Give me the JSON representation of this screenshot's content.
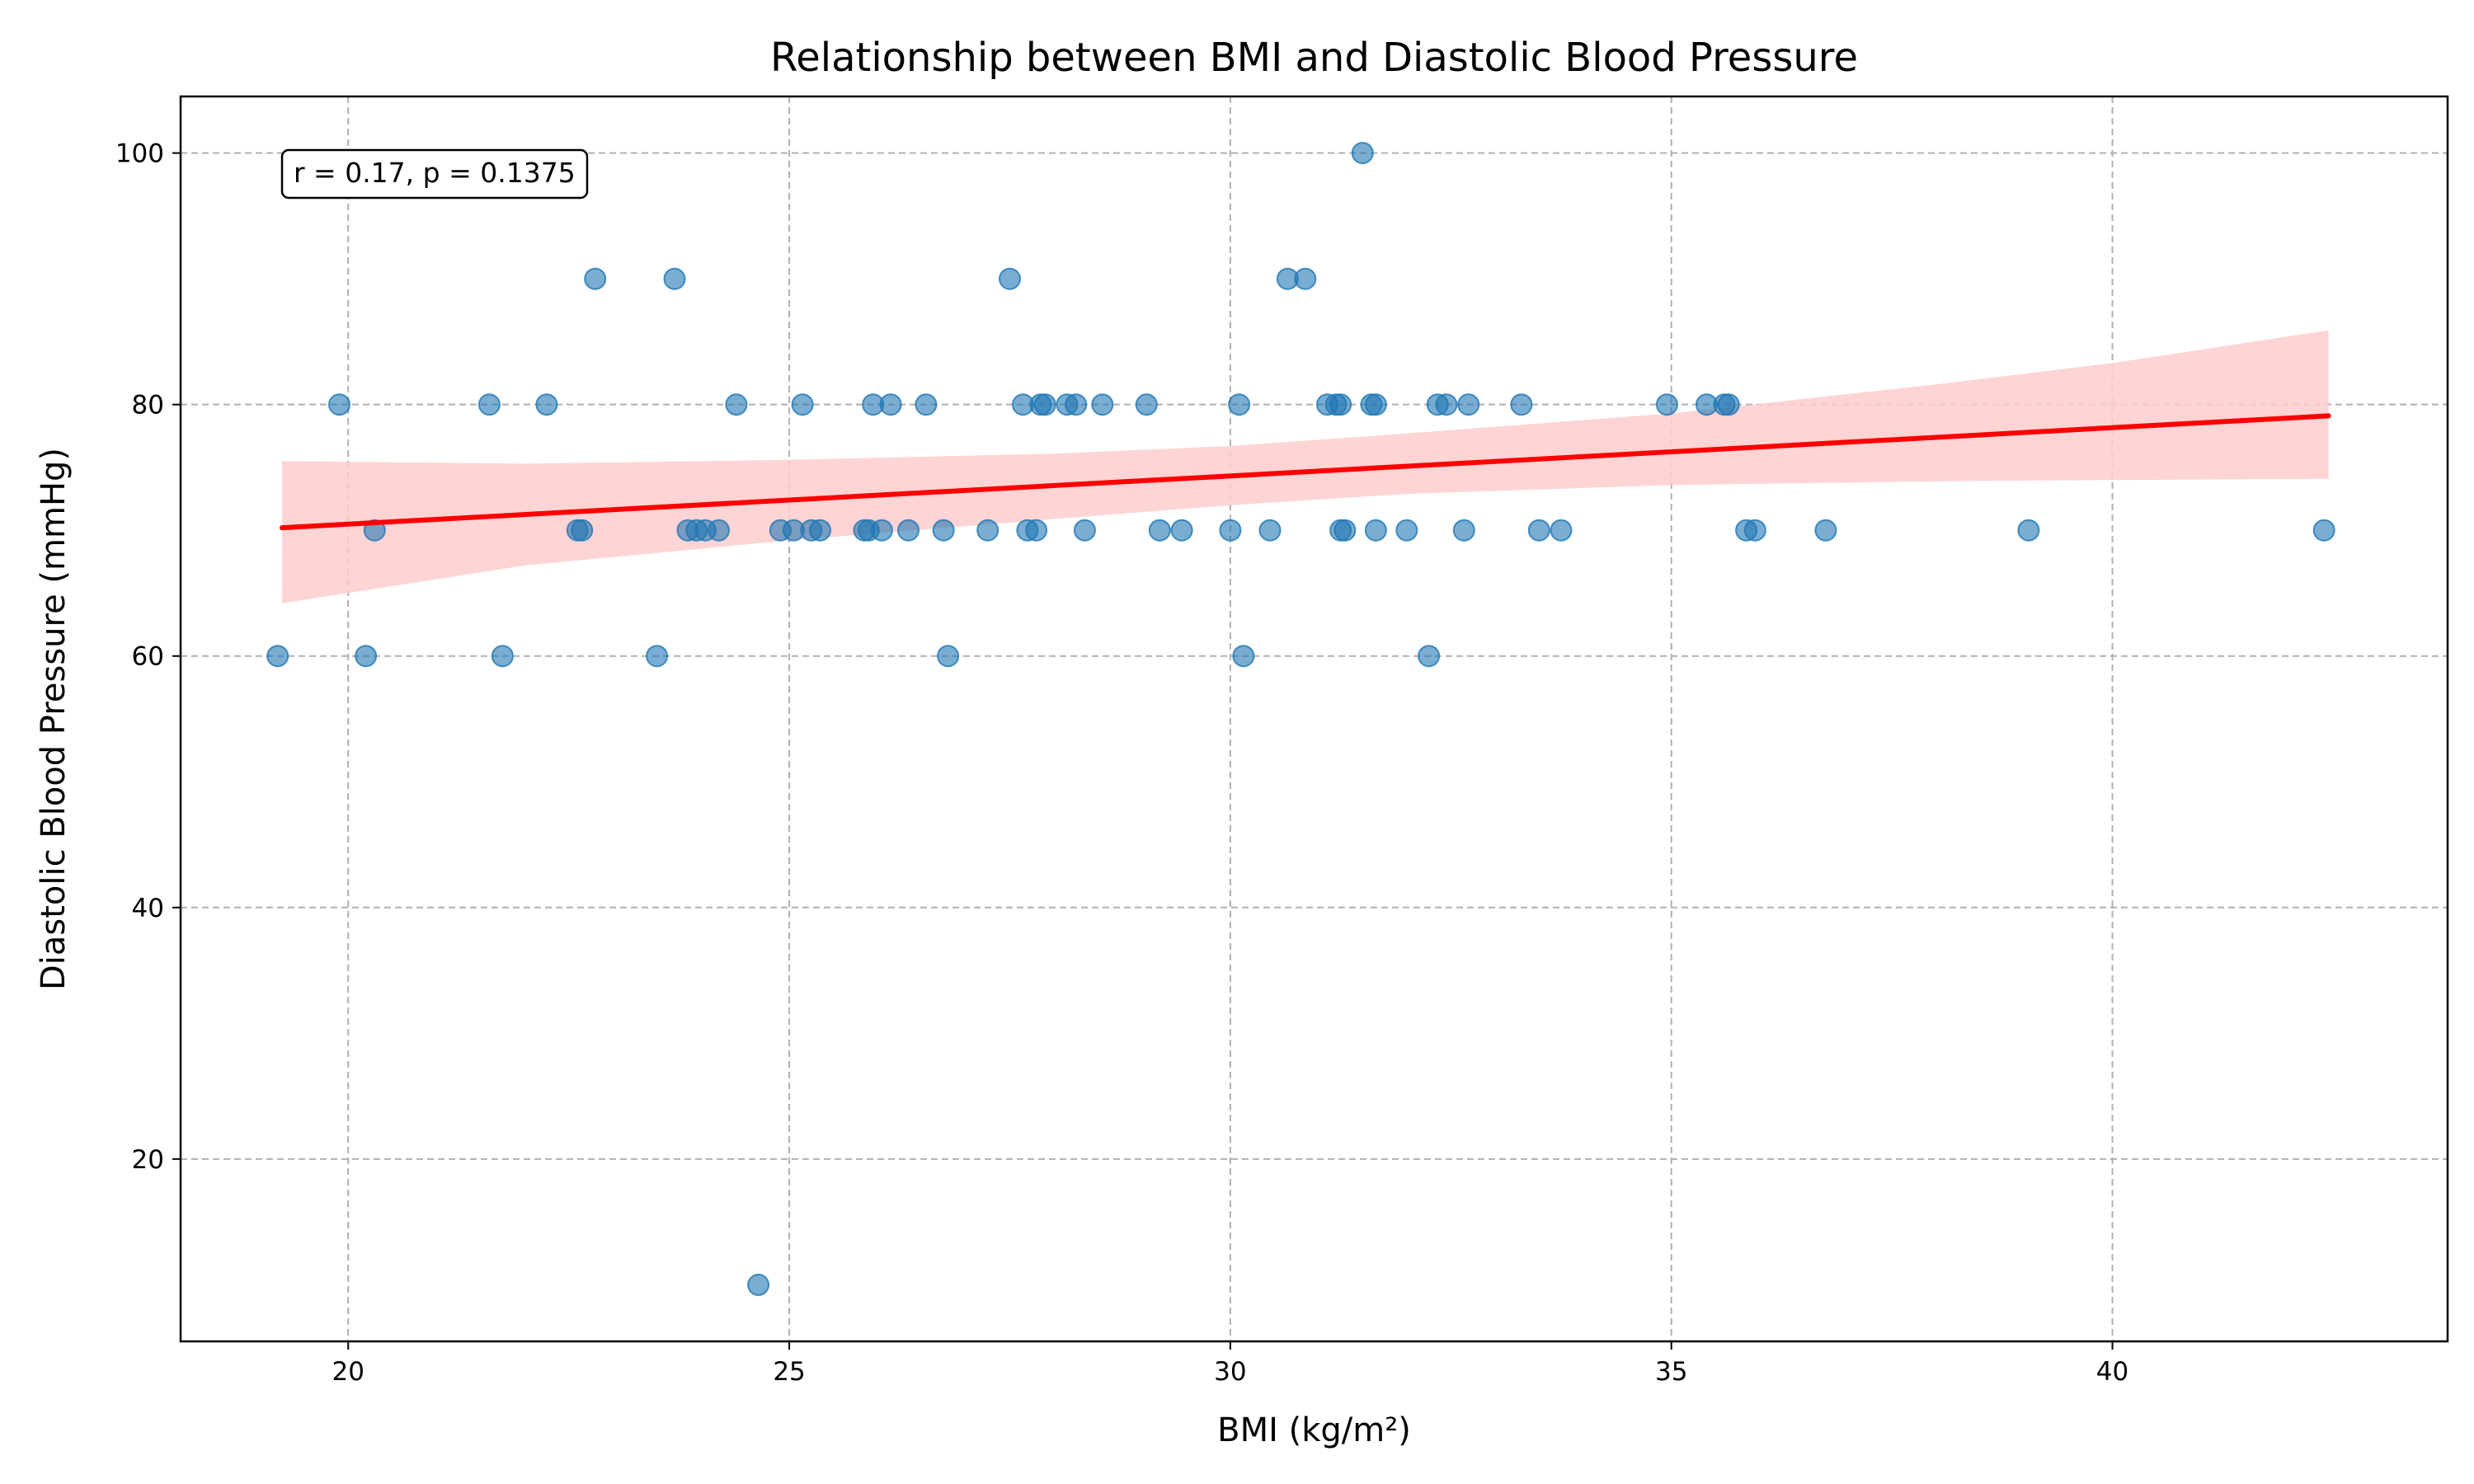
{
  "chart_data": {
    "type": "scatter",
    "title": "Relationship between BMI and Diastolic Blood Pressure",
    "xlabel": "BMI (kg/m²)",
    "ylabel": "Diastolic Blood Pressure (mmHg)",
    "xlim": [
      18.1,
      43.8
    ],
    "ylim": [
      5.5,
      104.5
    ],
    "xticks": [
      20,
      25,
      30,
      35,
      40
    ],
    "yticks": [
      20,
      40,
      60,
      80,
      100
    ],
    "grid": true,
    "annotation": "r = 0.17, p = 0.1375",
    "colors": {
      "points": "#1f77b4",
      "fit_line": "#ff0000",
      "ci_band": "#ffcccc"
    },
    "points": [
      {
        "x": 19.2,
        "y": 60
      },
      {
        "x": 19.9,
        "y": 80
      },
      {
        "x": 20.2,
        "y": 60
      },
      {
        "x": 20.3,
        "y": 70
      },
      {
        "x": 21.6,
        "y": 80
      },
      {
        "x": 21.75,
        "y": 60
      },
      {
        "x": 22.25,
        "y": 80
      },
      {
        "x": 22.6,
        "y": 70
      },
      {
        "x": 22.65,
        "y": 70
      },
      {
        "x": 22.8,
        "y": 90
      },
      {
        "x": 23.5,
        "y": 60
      },
      {
        "x": 23.7,
        "y": 90
      },
      {
        "x": 23.85,
        "y": 70
      },
      {
        "x": 23.95,
        "y": 70
      },
      {
        "x": 24.05,
        "y": 70
      },
      {
        "x": 24.2,
        "y": 70
      },
      {
        "x": 24.4,
        "y": 80
      },
      {
        "x": 24.65,
        "y": 10
      },
      {
        "x": 24.9,
        "y": 70
      },
      {
        "x": 25.05,
        "y": 70
      },
      {
        "x": 25.15,
        "y": 80
      },
      {
        "x": 25.25,
        "y": 70
      },
      {
        "x": 25.35,
        "y": 70
      },
      {
        "x": 25.85,
        "y": 70
      },
      {
        "x": 25.9,
        "y": 70
      },
      {
        "x": 25.95,
        "y": 80
      },
      {
        "x": 26.05,
        "y": 70
      },
      {
        "x": 26.15,
        "y": 80
      },
      {
        "x": 26.35,
        "y": 70
      },
      {
        "x": 26.55,
        "y": 80
      },
      {
        "x": 26.75,
        "y": 70
      },
      {
        "x": 26.8,
        "y": 60
      },
      {
        "x": 27.25,
        "y": 70
      },
      {
        "x": 27.5,
        "y": 90
      },
      {
        "x": 27.65,
        "y": 80
      },
      {
        "x": 27.7,
        "y": 70
      },
      {
        "x": 27.8,
        "y": 70
      },
      {
        "x": 27.85,
        "y": 80
      },
      {
        "x": 27.9,
        "y": 80
      },
      {
        "x": 28.15,
        "y": 80
      },
      {
        "x": 28.25,
        "y": 80
      },
      {
        "x": 28.35,
        "y": 70
      },
      {
        "x": 28.55,
        "y": 80
      },
      {
        "x": 29.05,
        "y": 80
      },
      {
        "x": 29.2,
        "y": 70
      },
      {
        "x": 29.45,
        "y": 70
      },
      {
        "x": 30.0,
        "y": 70
      },
      {
        "x": 30.1,
        "y": 80
      },
      {
        "x": 30.15,
        "y": 60
      },
      {
        "x": 30.45,
        "y": 70
      },
      {
        "x": 30.65,
        "y": 90
      },
      {
        "x": 30.85,
        "y": 90
      },
      {
        "x": 31.1,
        "y": 80
      },
      {
        "x": 31.2,
        "y": 80
      },
      {
        "x": 31.25,
        "y": 80
      },
      {
        "x": 31.25,
        "y": 70
      },
      {
        "x": 31.3,
        "y": 70
      },
      {
        "x": 31.5,
        "y": 100
      },
      {
        "x": 31.6,
        "y": 80
      },
      {
        "x": 31.65,
        "y": 80
      },
      {
        "x": 31.65,
        "y": 70
      },
      {
        "x": 32.0,
        "y": 70
      },
      {
        "x": 32.25,
        "y": 60
      },
      {
        "x": 32.35,
        "y": 80
      },
      {
        "x": 32.45,
        "y": 80
      },
      {
        "x": 32.65,
        "y": 70
      },
      {
        "x": 32.7,
        "y": 80
      },
      {
        "x": 33.3,
        "y": 80
      },
      {
        "x": 33.5,
        "y": 70
      },
      {
        "x": 33.75,
        "y": 70
      },
      {
        "x": 34.95,
        "y": 80
      },
      {
        "x": 35.4,
        "y": 80
      },
      {
        "x": 35.6,
        "y": 80
      },
      {
        "x": 35.65,
        "y": 80
      },
      {
        "x": 35.85,
        "y": 70
      },
      {
        "x": 35.95,
        "y": 70
      },
      {
        "x": 36.75,
        "y": 70
      },
      {
        "x": 39.05,
        "y": 70
      },
      {
        "x": 42.4,
        "y": 70
      }
    ],
    "fit_line": {
      "x": [
        19.25,
        42.45
      ],
      "y": [
        70.2,
        79.1
      ]
    },
    "ci_band": {
      "x": [
        19.25,
        22,
        25,
        28,
        30,
        32,
        35,
        38,
        40,
        42.45
      ],
      "upper": [
        75.5,
        75.3,
        75.6,
        76.1,
        76.7,
        77.7,
        79.3,
        81.6,
        83.3,
        85.9
      ],
      "lower": [
        64.2,
        67.2,
        69.2,
        70.9,
        72.0,
        72.9,
        73.6,
        73.9,
        74.0,
        74.1
      ]
    }
  }
}
